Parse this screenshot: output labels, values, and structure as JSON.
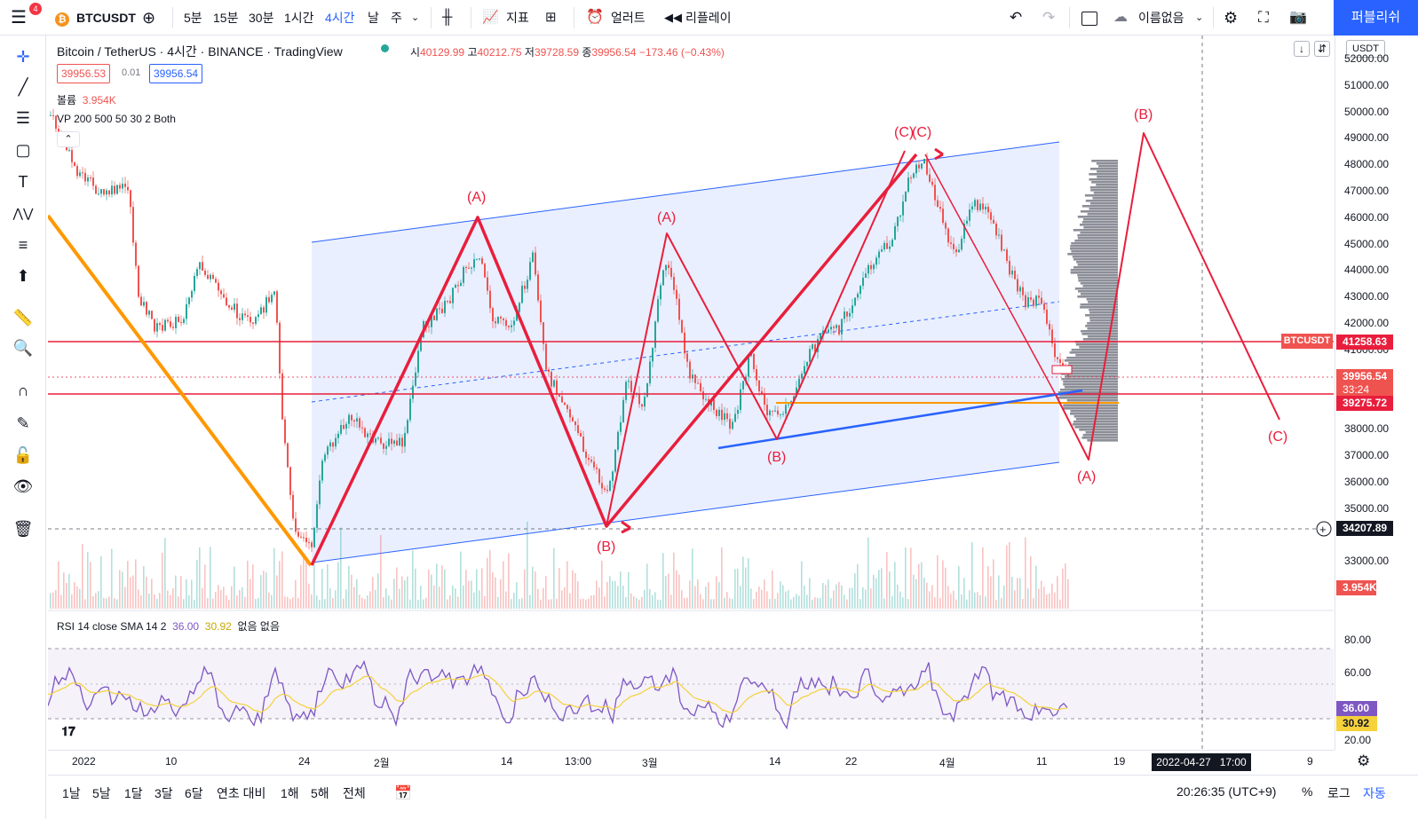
{
  "app": {
    "menu_badge": "4",
    "symbol": "BTCUSDT",
    "publish_label": "퍼블리쉬",
    "layout_name": "이름없음"
  },
  "toolbar": {
    "intervals": [
      "5분",
      "15분",
      "30분",
      "1시간",
      "4시간",
      "날",
      "주"
    ],
    "selected_interval": "4시간",
    "indicators_label": "지표",
    "alert_label": "얼러트",
    "replay_label": "리플레이"
  },
  "legend": {
    "title": "Bitcoin / TetherUS · 4시간 · BINANCE · TradingView",
    "ohlc": {
      "open_label": "시",
      "open": "40129.99",
      "high_label": "고",
      "high": "40212.75",
      "low_label": "저",
      "low": "39728.59",
      "close_label": "종",
      "close": "39956.54",
      "change": "−173.46 (−0.43%)"
    },
    "sell_price": "39956.53",
    "spread": "0.01",
    "buy_price": "39956.54",
    "volume_label": "볼륨",
    "volume_value": "3.954K",
    "vp_label": "VP 200 500 50 30 2 Both"
  },
  "price_axis": {
    "currency": "USDT",
    "labels": [
      "52000.00",
      "51000.00",
      "50000.00",
      "49000.00",
      "48000.00",
      "47000.00",
      "46000.00",
      "45000.00",
      "44000.00",
      "43000.00",
      "42000.00",
      "41000.00",
      "40000.00",
      "39000.00",
      "38000.00",
      "37000.00",
      "36000.00",
      "35000.00",
      "33000.00"
    ],
    "tags": {
      "level_high": "41258.63",
      "symbol_tag": "BTCUSDT",
      "last_price": "39956.54",
      "countdown": "33:24",
      "level_low": "39275.72",
      "crosshair": "34207.89",
      "volume": "3.954K"
    }
  },
  "rsi": {
    "label": "RSI 14 close SMA 14 2",
    "value1": "36.00",
    "value2": "30.92",
    "none1": "없음",
    "none2": "없음",
    "axis_labels": [
      "80.00",
      "60.00",
      "40.00",
      "20.00"
    ]
  },
  "time_axis": {
    "labels": [
      "2022",
      "10",
      "24",
      "2월",
      "14",
      "13:00",
      "3월",
      "14",
      "22",
      "4월",
      "11",
      "19",
      "9"
    ],
    "crosshair_date": "2022-04-27",
    "crosshair_time": "17:00"
  },
  "wave_labels": [
    "(A)",
    "(B)",
    "(A)",
    "(B)",
    "(C)",
    "(C)",
    "(A)",
    "(B)",
    "(C)"
  ],
  "bottombar": {
    "ranges": [
      "1날",
      "5날",
      "1달",
      "3달",
      "6달",
      "연초 대비",
      "1해",
      "5해",
      "전체"
    ],
    "clock": "20:26:35 (UTC+9)",
    "percent": "%",
    "log": "로그",
    "auto": "자동"
  },
  "colors": {
    "accent": "#2962ff",
    "wave_red": "#e91e3c",
    "orange": "#ff9800",
    "up": "#26a69a",
    "down": "#ef5350"
  }
}
